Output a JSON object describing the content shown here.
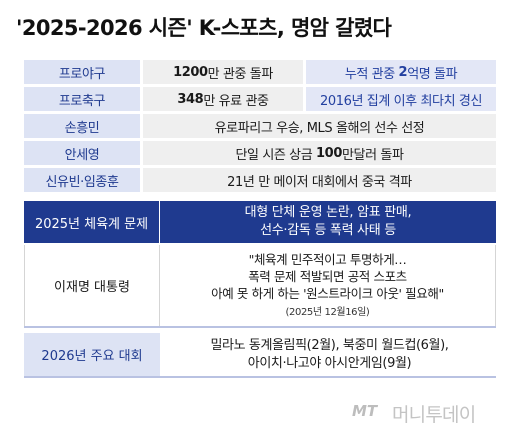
{
  "title": "'2025-2026 시즌' K-스포츠, 명암 갈렸다",
  "rows": [
    {
      "label": "프로야구",
      "value_num": "1200",
      "value_rest": "만 관중 돌파",
      "extra_pre": "누적 관중 ",
      "extra_num": "2",
      "extra_post": "억명 돌파"
    },
    {
      "label": "프로축구",
      "value_num": "348",
      "value_rest": "만 유료 관중",
      "extra": "2016년 집계 이후 최다치 경신"
    },
    {
      "label": "손흥민",
      "value": "유로파리그 우승, MLS 올해의 선수 선정"
    },
    {
      "label": "안세영",
      "value_pre": "단일 시즌 상금 ",
      "value_num": "100",
      "value_post": "만달러 돌파"
    },
    {
      "label": "신유빈·임종훈",
      "value": "21년 만 메이저 대회에서 중국 격파"
    }
  ],
  "problems": {
    "label": "2025년 체육계 문제",
    "line1": "대형 단체 운영 논란, 암표 판매,",
    "line2": "선수·감독 등 폭력 사태 등"
  },
  "quote": {
    "label": "이재명 대통령",
    "line1": "\"체육계 민주적이고 투명하게…",
    "line2": "폭력 문제 적발되면 공적 스포츠",
    "line3": "아예 못 하게 하는 '원스트라이크 아웃' 필요해\"",
    "date": "(2025년 12월16일)"
  },
  "events": {
    "label": "2026년 주요 대회",
    "line1": "밀라노 동계올림픽(2월), 북중미 월드컵(6월),",
    "line2": "아이치·나고야 아시안게임(9월)"
  },
  "logo": {
    "mt": "MT",
    "brand": "머니투데이"
  },
  "colors": {
    "accent": "#1f3a8f",
    "label_bg": "#dde3f4",
    "row_bg": "#efefef"
  }
}
